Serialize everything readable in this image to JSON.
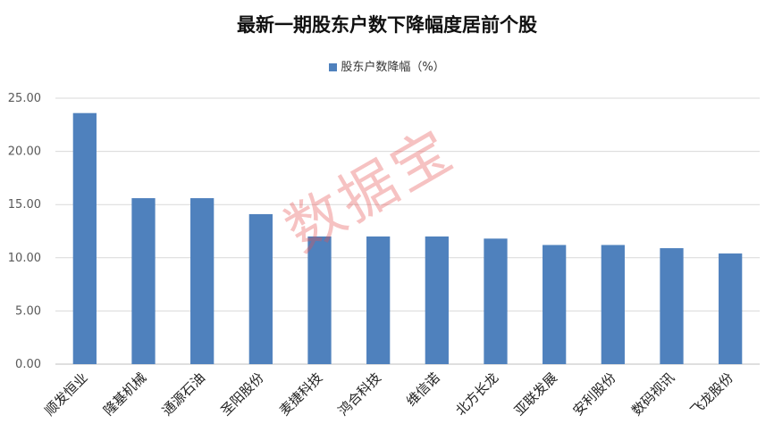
{
  "chart_data": {
    "type": "bar",
    "title": "最新一期股东户数下降幅度居前个股",
    "categories": [
      "顺发恒业",
      "隆基机械",
      "通源石油",
      "圣阳股份",
      "麦捷科技",
      "鸿合科技",
      "维信诺",
      "北方长龙",
      "亚联发展",
      "安利股份",
      "数码视讯",
      "飞龙股份"
    ],
    "series": [
      {
        "name": "股东户数降幅（%）",
        "color": "#4f81bd",
        "values": [
          23.6,
          15.6,
          15.6,
          14.1,
          12.0,
          12.0,
          12.0,
          11.8,
          11.2,
          11.2,
          10.9,
          10.4
        ]
      }
    ],
    "ylim": [
      0,
      25
    ],
    "yticks": [
      "0.00",
      "5.00",
      "10.00",
      "15.00",
      "20.00",
      "25.00"
    ],
    "ytick_values": [
      0,
      5,
      10,
      15,
      20,
      25
    ],
    "grid": true,
    "legend_position": "top-center",
    "xlabel": "",
    "ylabel": ""
  },
  "watermark": "数据宝"
}
